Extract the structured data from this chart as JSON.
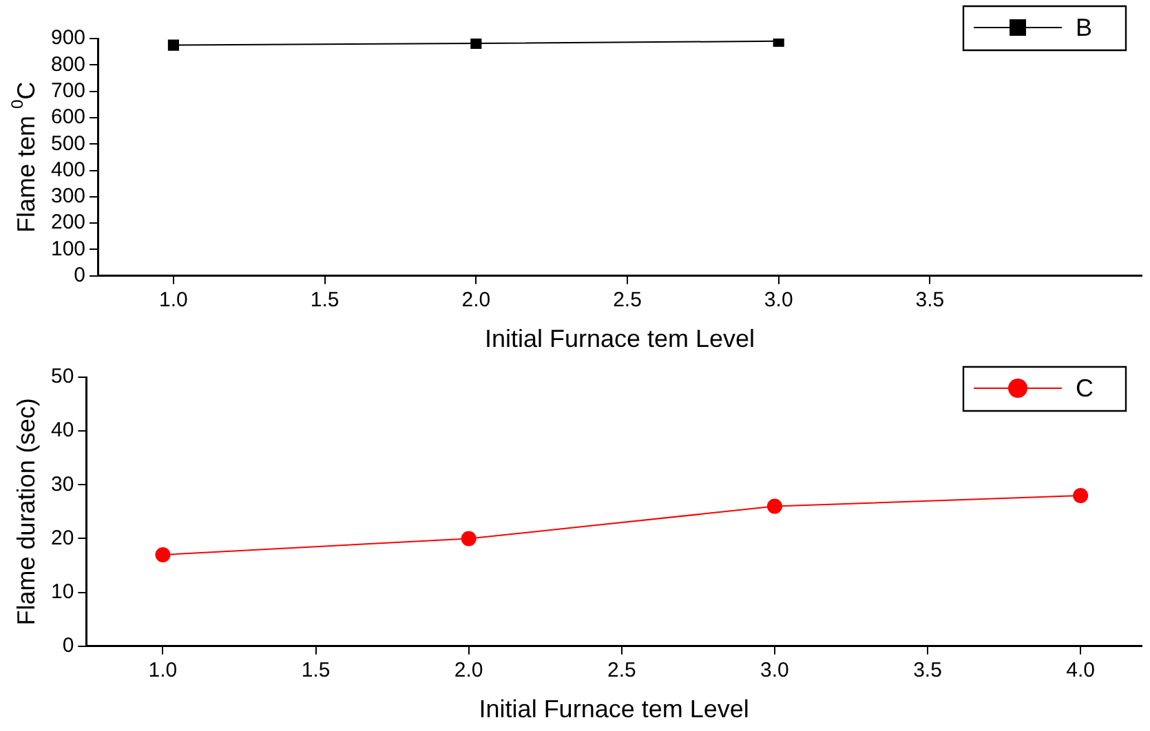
{
  "chart_data": [
    {
      "type": "line",
      "xlabel": "Initial Furnace tem Level",
      "ylabel": "Flame tem $^{0}$C",
      "x": [
        1,
        2,
        3
      ],
      "series": [
        {
          "name": "B",
          "color": "#000000",
          "marker": "square",
          "values": [
            875,
            882,
            890
          ]
        }
      ],
      "xlim": [
        0.75,
        4.2
      ],
      "xticks": [
        {
          "value": 1,
          "label": "1.0"
        },
        {
          "value": 1.5,
          "label": "1.5"
        },
        {
          "value": 2,
          "label": "2.0"
        },
        {
          "value": 2.5,
          "label": "2.5"
        },
        {
          "value": 3,
          "label": "3.0"
        },
        {
          "value": 3.5,
          "label": "3.5"
        }
      ],
      "ylim": [
        0,
        900
      ],
      "yticks": [
        0,
        100,
        200,
        300,
        400,
        500,
        600,
        700,
        800,
        900
      ],
      "grid": false,
      "legend": "top right"
    },
    {
      "type": "line",
      "xlabel": "Initial Furnace tem Level",
      "ylabel": "Flame duration (sec)",
      "x": [
        1,
        2,
        3,
        4
      ],
      "series": [
        {
          "name": "C",
          "color": "#ff0000",
          "marker": "circle",
          "values": [
            17,
            20,
            26,
            28
          ]
        }
      ],
      "xlim": [
        0.75,
        4.2
      ],
      "xticks": [
        {
          "value": 1,
          "label": "1.0"
        },
        {
          "value": 1.5,
          "label": "1.5"
        },
        {
          "value": 2,
          "label": "2.0"
        },
        {
          "value": 2.5,
          "label": "2.5"
        },
        {
          "value": 3,
          "label": "3.0"
        },
        {
          "value": 3.5,
          "label": "3.5"
        },
        {
          "value": 4,
          "label": "4.0"
        }
      ],
      "ylim": [
        0,
        50
      ],
      "yticks": [
        0,
        10,
        20,
        30,
        40,
        50
      ],
      "grid": false,
      "legend": "top right"
    }
  ]
}
